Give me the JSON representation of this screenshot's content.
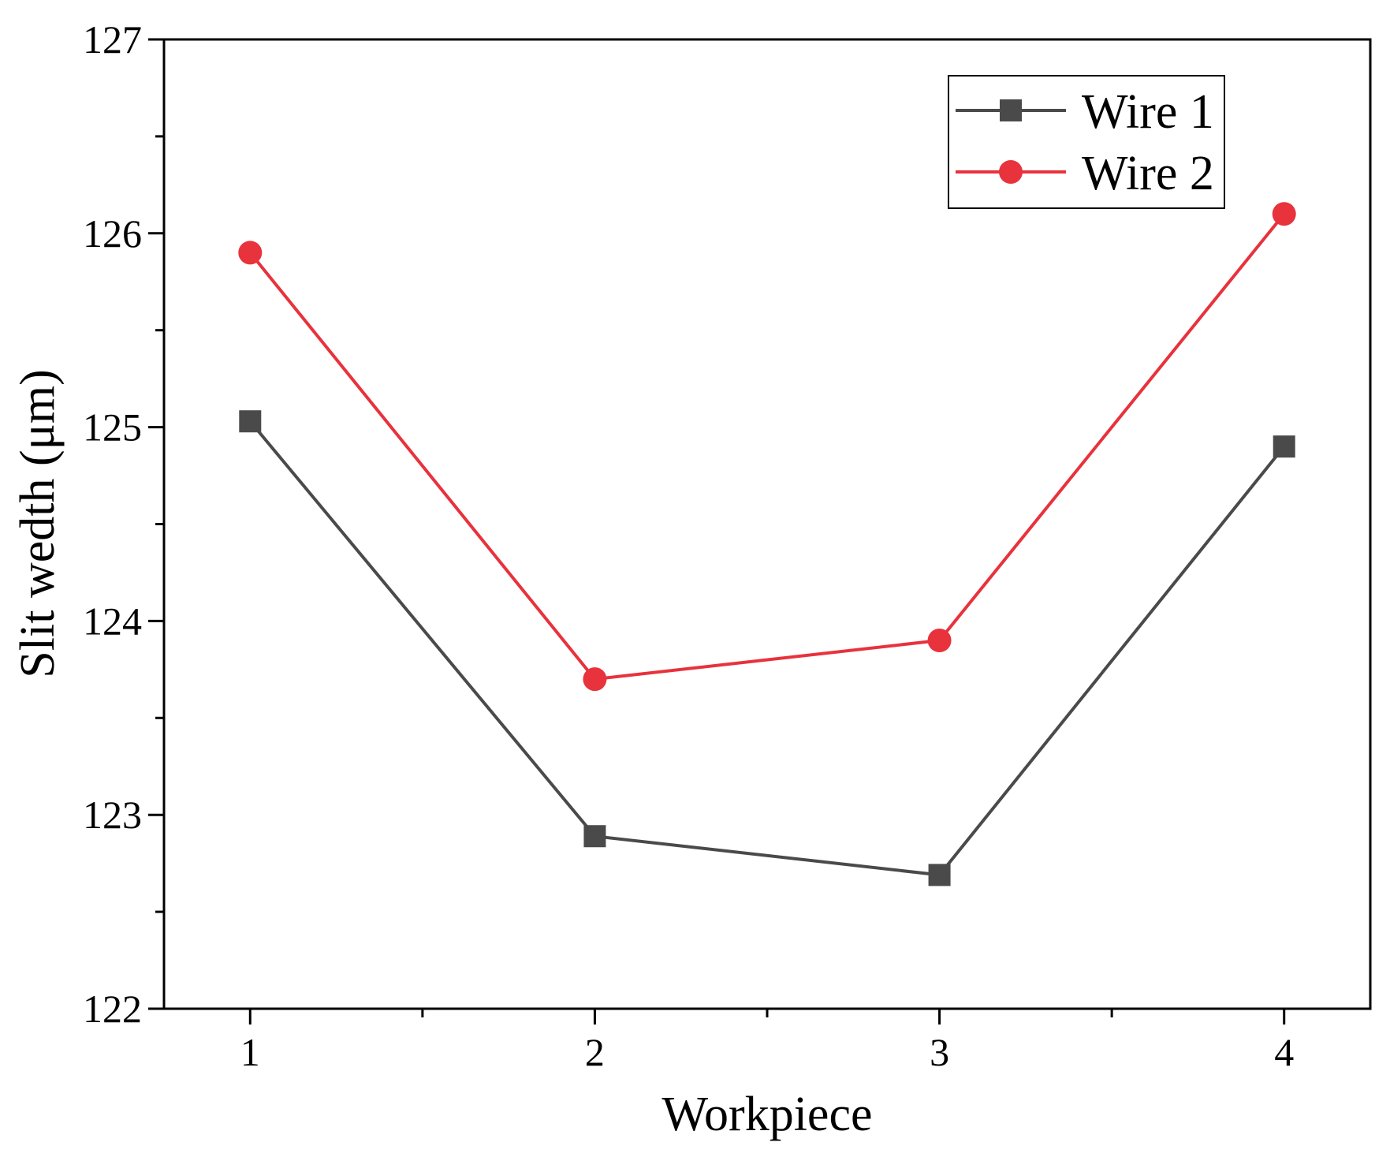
{
  "chart_data": {
    "type": "line",
    "xlabel": "Workpiece",
    "ylabel": "Slit wedth (μm)",
    "x": [
      1,
      2,
      3,
      4
    ],
    "xticks": [
      "1",
      "2",
      "3",
      "4"
    ],
    "xlim": [
      0.75,
      4.25
    ],
    "ylim": [
      122,
      127
    ],
    "yticks": [
      "122",
      "123",
      "124",
      "125",
      "126",
      "127"
    ],
    "grid": false,
    "legend_position": "top-right",
    "series": [
      {
        "name": "Wire 1",
        "values": [
          125.03,
          122.89,
          122.69,
          124.9
        ],
        "color": "#4a4a4a",
        "marker": "square"
      },
      {
        "name": "Wire 2",
        "values": [
          125.9,
          123.7,
          123.9,
          126.1
        ],
        "color": "#e8323c",
        "marker": "circle"
      }
    ]
  }
}
